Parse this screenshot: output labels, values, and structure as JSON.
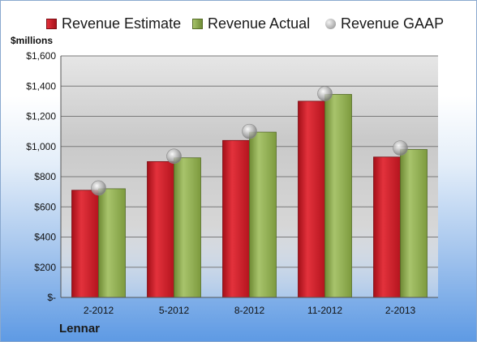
{
  "legend": {
    "estimate_label": "Revenue Estimate",
    "actual_label": "Revenue Actual",
    "gaap_label": "Revenue GAAP"
  },
  "unit_label": "$millions",
  "company": "Lennar",
  "colors": {
    "estimate": "#c81e28",
    "actual": "#8fae4f",
    "gaap": "#b4b4b4"
  },
  "chart_data": {
    "type": "bar",
    "title": "",
    "xlabel": "",
    "ylabel": "$millions",
    "categories": [
      "2-2012",
      "5-2012",
      "8-2012",
      "11-2012",
      "2-2013"
    ],
    "ylim": [
      0,
      1600
    ],
    "yticks": [
      0,
      200,
      400,
      600,
      800,
      1000,
      1200,
      1400,
      1600
    ],
    "ytick_labels": [
      "$-",
      "$200",
      "$400",
      "$600",
      "$800",
      "$1,000",
      "$1,200",
      "$1,400",
      "$1,600"
    ],
    "grid": true,
    "legend_position": "top",
    "series": [
      {
        "name": "Revenue Estimate",
        "values": [
          710,
          900,
          1040,
          1300,
          930
        ]
      },
      {
        "name": "Revenue Actual",
        "values": [
          720,
          925,
          1095,
          1345,
          980
        ]
      },
      {
        "name": "Revenue GAAP",
        "values": [
          725,
          935,
          1100,
          1350,
          990
        ],
        "marker": "circle"
      }
    ]
  }
}
